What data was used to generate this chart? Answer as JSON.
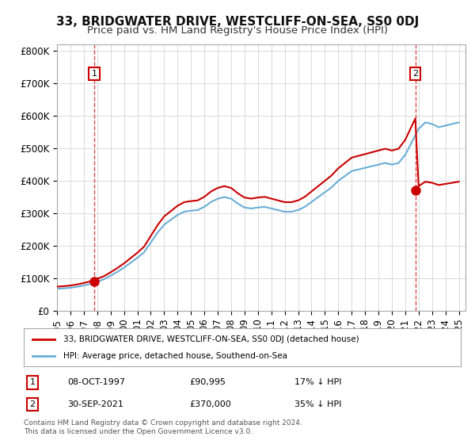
{
  "title": "33, BRIDGWATER DRIVE, WESTCLIFF-ON-SEA, SS0 0DJ",
  "subtitle": "Price paid vs. HM Land Registry's House Price Index (HPI)",
  "xlabel": "",
  "ylabel": "",
  "background_color": "#ffffff",
  "plot_bg_color": "#ffffff",
  "grid_color": "#cccccc",
  "hpi_color": "#6baed6",
  "price_color": "#cc0000",
  "ylim": [
    0,
    820000
  ],
  "yticks": [
    0,
    100000,
    200000,
    300000,
    400000,
    500000,
    600000,
    700000,
    800000
  ],
  "ytick_labels": [
    "£0",
    "£100K",
    "£200K",
    "£300K",
    "£400K",
    "£500K",
    "£600K",
    "£700K",
    "£800K"
  ],
  "sale1_date": 1997.78,
  "sale1_price": 90995,
  "sale1_label": "1",
  "sale2_date": 2021.75,
  "sale2_price": 370000,
  "sale2_label": "2",
  "legend_line1": "33, BRIDGWATER DRIVE, WESTCLIFF-ON-SEA, SS0 0DJ (detached house)",
  "legend_line2": "HPI: Average price, detached house, Southend-on-Sea",
  "table_row1": [
    "1",
    "08-OCT-1997",
    "£90,995",
    "17% ↓ HPI"
  ],
  "table_row2": [
    "2",
    "30-SEP-2021",
    "£370,000",
    "35% ↓ HPI"
  ],
  "footnote": "Contains HM Land Registry data © Crown copyright and database right 2024.\nThis data is licensed under the Open Government Licence v3.0.",
  "title_fontsize": 11,
  "subtitle_fontsize": 9.5,
  "tick_fontsize": 8.5
}
